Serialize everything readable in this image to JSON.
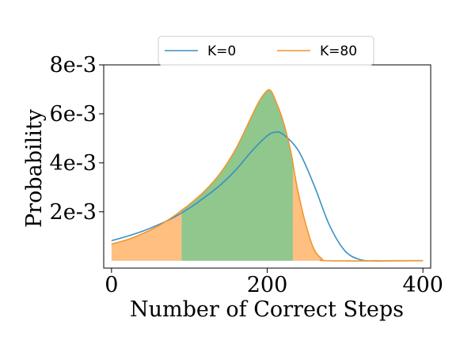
{
  "chart_data": {
    "type": "line",
    "xlabel": "Number of Correct Steps",
    "ylabel": "Probability",
    "xlim": [
      -10,
      410
    ],
    "ylim": [
      -0.0003,
      0.008
    ],
    "x_ticks": [
      0,
      200,
      400
    ],
    "x_tick_labels": [
      "0",
      "200",
      "400"
    ],
    "y_ticks": [
      0.002,
      0.004,
      0.006,
      0.008
    ],
    "y_tick_labels": [
      "2e-3",
      "4e-3",
      "6e-3",
      "8e-3"
    ],
    "legend_position": "top-center",
    "grid": false,
    "series": [
      {
        "name": "K=0",
        "color": "#3a8fc7",
        "x": [
          0,
          20,
          40,
          60,
          80,
          100,
          120,
          140,
          160,
          180,
          200,
          210,
          220,
          240,
          260,
          280,
          300,
          320,
          340,
          360,
          380,
          400
        ],
        "y": [
          0.00082,
          0.001,
          0.00121,
          0.00147,
          0.00177,
          0.00215,
          0.0026,
          0.0031,
          0.00372,
          0.00447,
          0.0051,
          0.00525,
          0.00517,
          0.0045,
          0.0031,
          0.00145,
          0.0004,
          4e-05,
          0.0,
          0.0,
          0.0,
          0.0
        ]
      },
      {
        "name": "K=80",
        "color": "#f0962e",
        "x": [
          0,
          20,
          40,
          60,
          80,
          90,
          100,
          120,
          140,
          160,
          180,
          190,
          200,
          205,
          210,
          220,
          230,
          235,
          240,
          250,
          260,
          270,
          280
        ],
        "y": [
          0.00068,
          0.00086,
          0.00111,
          0.00142,
          0.00182,
          0.00206,
          0.0023,
          0.00286,
          0.00359,
          0.00459,
          0.0059,
          0.00653,
          0.00695,
          0.00693,
          0.0066,
          0.00575,
          0.0045,
          0.0036,
          0.00275,
          0.00143,
          0.00048,
          9e-05,
          0.0
        ]
      }
    ],
    "shaded_regions": [
      {
        "x_range": [
          0,
          90
        ],
        "under": "K=80",
        "color": "#ffbf80"
      },
      {
        "x_range": [
          90,
          233
        ],
        "under": "K=80",
        "color": "#8fc78d"
      },
      {
        "x_range": [
          233,
          280
        ],
        "under": "K=80",
        "color": "#ffbf80"
      }
    ]
  }
}
